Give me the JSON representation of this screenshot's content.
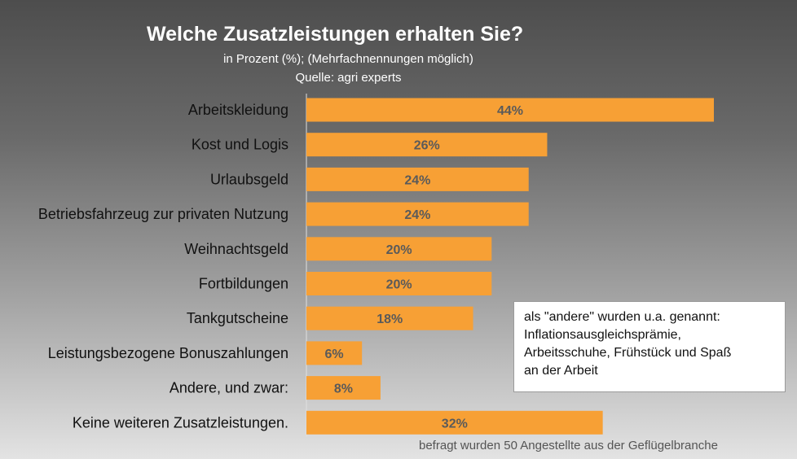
{
  "title": "Welche Zusatzleistungen erhalten Sie?",
  "subtitle_line1": "in Prozent (%); (Mehrfachnennungen möglich)",
  "subtitle_line2": "Quelle: agri experts",
  "note": {
    "lines": [
      "als \"andere\" wurden u.a. genannt:",
      "Inflationsausgleichsprämie,",
      "Arbeitsschuhe, Frühstück und Spaß",
      "an der Arbeit"
    ]
  },
  "footnote": "befragt wurden 50 Angestellte aus der Geflügelbranche",
  "colors": {
    "bar": "#f7a035",
    "axis": "#e0e0e0"
  },
  "chart_data": {
    "type": "bar",
    "orientation": "horizontal",
    "categories": [
      "Arbeitskleidung",
      "Kost und Logis",
      "Urlaubsgeld",
      "Betriebsfahrzeug zur privaten Nutzung",
      "Weihnachtsgeld",
      "Fortbildungen",
      "Tankgutscheine",
      "Leistungsbezogene Bonuszahlungen",
      "Andere, und zwar:",
      "Keine weiteren Zusatzleistungen."
    ],
    "values": [
      44,
      26,
      24,
      24,
      20,
      20,
      18,
      6,
      8,
      32
    ],
    "value_labels": [
      "44%",
      "26%",
      "24%",
      "24%",
      "20%",
      "20%",
      "18%",
      "6%",
      "8%",
      "32%"
    ],
    "title": "Welche Zusatzleistungen erhalten Sie?",
    "xlabel": "",
    "ylabel": "",
    "grid": false
  }
}
